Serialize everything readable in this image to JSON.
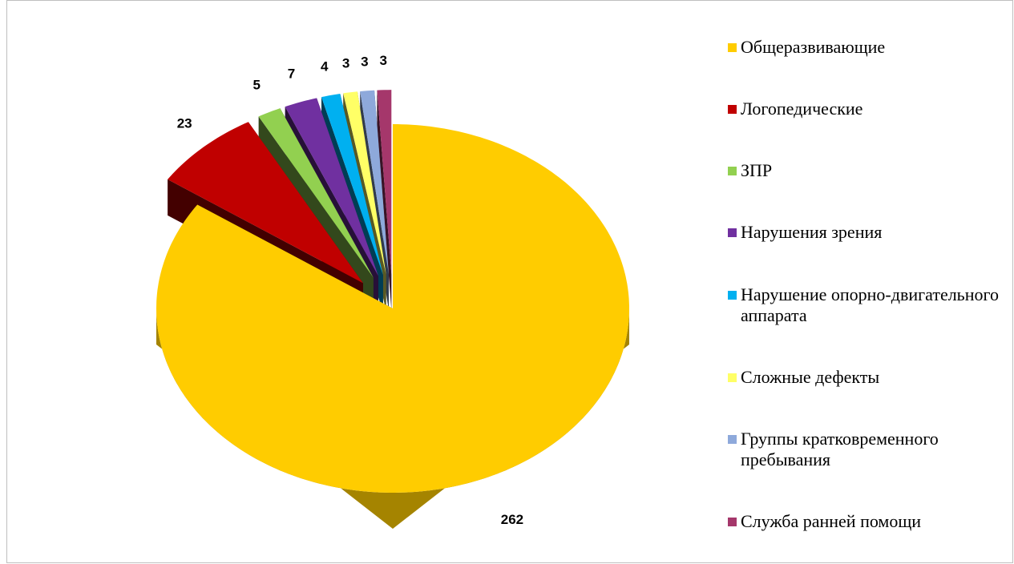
{
  "chart_data": {
    "type": "pie3d",
    "categories": [
      "Общеразвивающие",
      "Логопедические",
      "ЗПР",
      "Нарушения зрения",
      "Нарушение опорно-двигательного аппарата",
      "Сложные дефекты",
      "Группы кратковременного пребывания",
      "Служба ранней помощи"
    ],
    "values": [
      262,
      23,
      5,
      7,
      4,
      3,
      3,
      3
    ],
    "colors": [
      "#ffcc00",
      "#c00000",
      "#92d050",
      "#7030a0",
      "#00b0f0",
      "#ffff66",
      "#8ea9db",
      "#a5376b"
    ],
    "legend": "right"
  }
}
